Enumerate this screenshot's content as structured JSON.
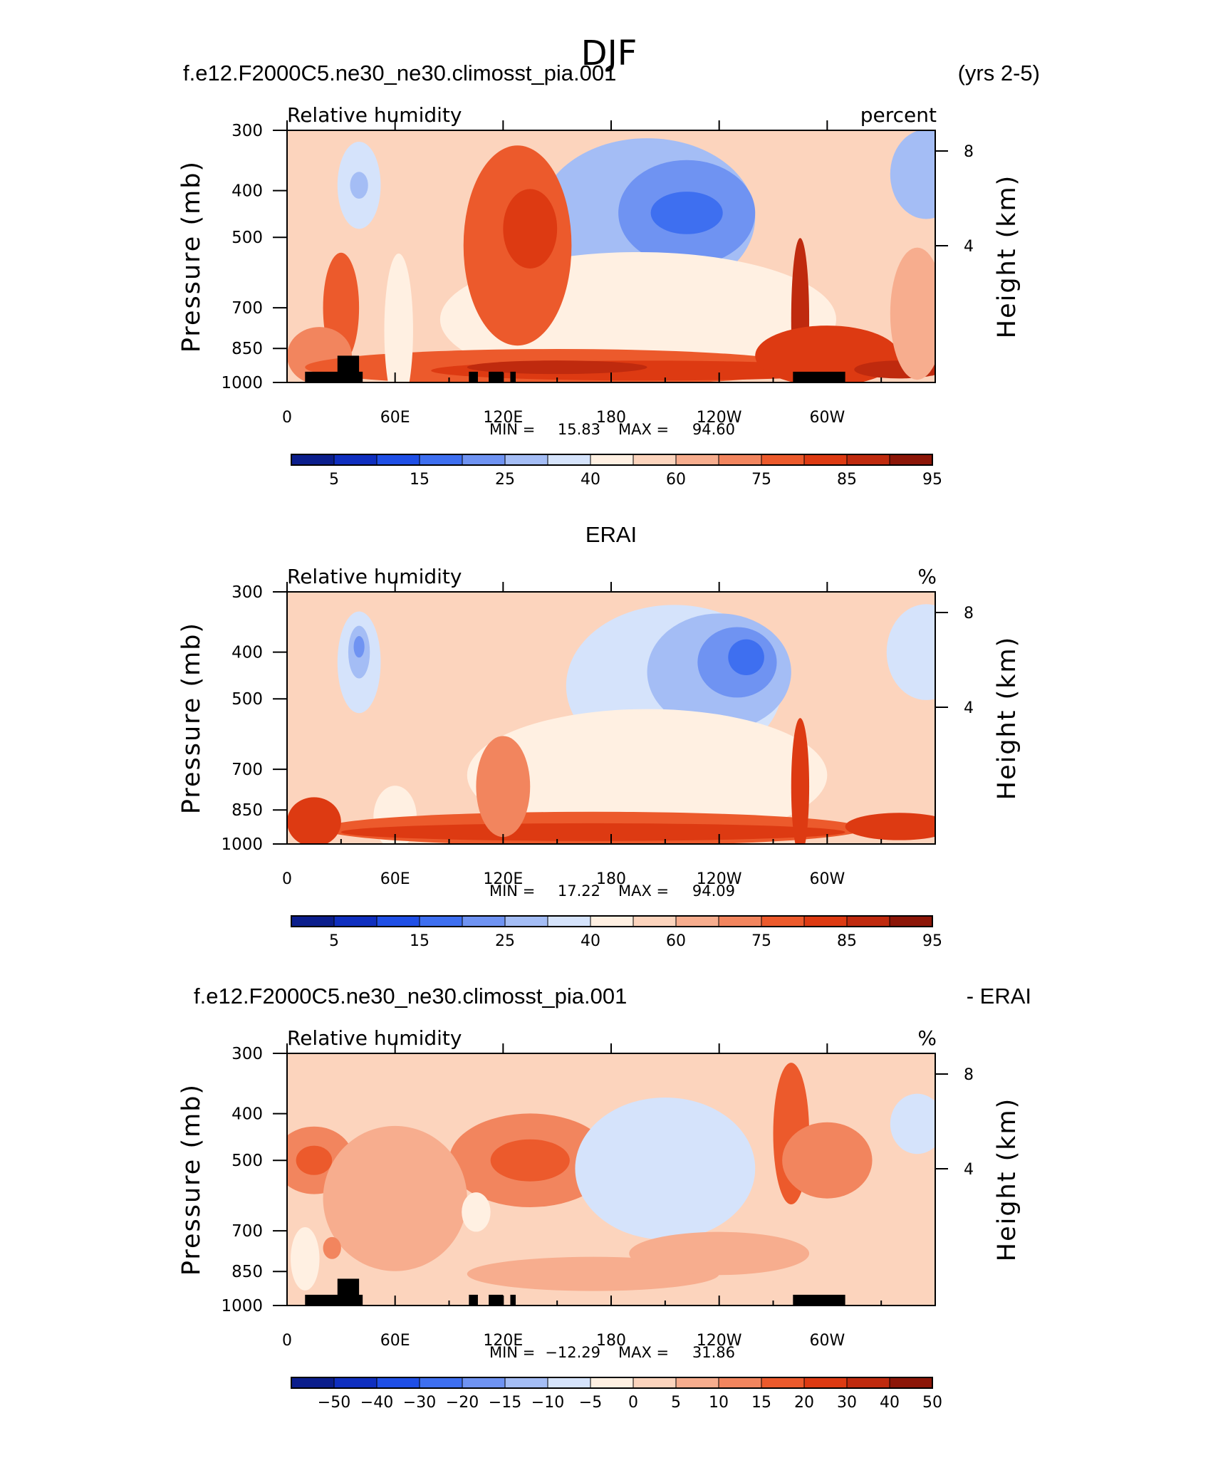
{
  "title": "DJF",
  "palette": {
    "rh": [
      "#0b1e8c",
      "#0f2fbf",
      "#1f4fe6",
      "#3e6ff0",
      "#6f93f2",
      "#a4bdf5",
      "#d5e3fb",
      "#fff0e2",
      "#fcd4bd",
      "#f7ad8e",
      "#f2855e",
      "#ec5a2c",
      "#dd3a12",
      "#bf2a0e",
      "#8c1608"
    ],
    "diff": [
      "#0b1e8c",
      "#0f2fbf",
      "#1f4fe6",
      "#3e6ff0",
      "#6f93f2",
      "#a4bdf5",
      "#d5e3fb",
      "#fff0e2",
      "#fcd4bd",
      "#f7ad8e",
      "#f2855e",
      "#ec5a2c",
      "#dd3a12",
      "#bf2a0e",
      "#8c1608"
    ],
    "land": "#000000"
  },
  "chart_data": [
    {
      "type": "heatmap",
      "case_title": "f.e12.F2000C5.ne30_ne30.climosst_pia.001",
      "years": "(yrs 2-5)",
      "variable": "Relative humidity",
      "units": "percent",
      "ylabel": "Pressure (mb)",
      "ylabel_right": "Height (km)",
      "x_ticks": [
        "0",
        "60E",
        "120E",
        "180",
        "120W",
        "60W"
      ],
      "x_tick_values": [
        0,
        60,
        120,
        180,
        240,
        300
      ],
      "xlim": [
        0,
        360
      ],
      "y_ticks": [
        "300",
        "400",
        "500",
        "700",
        "850",
        "1000"
      ],
      "y_tick_values": [
        300,
        400,
        500,
        700,
        850,
        1000
      ],
      "ylim": [
        300,
        1000
      ],
      "height_ticks": [
        "8",
        "4"
      ],
      "stats": {
        "min_label": "MIN =",
        "min": "15.83",
        "max_label": "MAX =",
        "max": "94.60"
      },
      "colorbar_labels": [
        "5",
        "15",
        "25",
        "40",
        "60",
        "75",
        "85",
        "95"
      ],
      "colorbar_label_bins": [
        0,
        2,
        4,
        6,
        8,
        10,
        12,
        14
      ],
      "background_level": 8,
      "blobs": [
        {
          "x": 200,
          "p": 455,
          "rx": 60,
          "rp": 185,
          "l": 5
        },
        {
          "x": 222,
          "p": 445,
          "rx": 38,
          "rp": 110,
          "l": 4
        },
        {
          "x": 222,
          "p": 445,
          "rx": 20,
          "rp": 45,
          "l": 3
        },
        {
          "x": 195,
          "p": 740,
          "rx": 110,
          "rp": 230,
          "l": 7
        },
        {
          "x": 40,
          "p": 390,
          "rx": 12,
          "rp": 80,
          "l": 6
        },
        {
          "x": 40,
          "p": 390,
          "rx": 5,
          "rp": 25,
          "l": 5
        },
        {
          "x": 355,
          "p": 370,
          "rx": 20,
          "rp": 90,
          "l": 5
        },
        {
          "x": 128,
          "p": 520,
          "rx": 30,
          "rp": 260,
          "l": 11
        },
        {
          "x": 135,
          "p": 480,
          "rx": 15,
          "rp": 90,
          "l": 12
        },
        {
          "x": 30,
          "p": 700,
          "rx": 10,
          "rp": 180,
          "l": 11
        },
        {
          "x": 18,
          "p": 880,
          "rx": 18,
          "rp": 120,
          "l": 10
        },
        {
          "x": 150,
          "p": 930,
          "rx": 140,
          "rp": 90,
          "l": 11
        },
        {
          "x": 200,
          "p": 945,
          "rx": 120,
          "rp": 45,
          "l": 12
        },
        {
          "x": 150,
          "p": 930,
          "rx": 50,
          "rp": 30,
          "l": 13
        },
        {
          "x": 285,
          "p": 740,
          "rx": 5,
          "rp": 280,
          "l": 13
        },
        {
          "x": 300,
          "p": 880,
          "rx": 40,
          "rp": 130,
          "l": 12
        },
        {
          "x": 340,
          "p": 940,
          "rx": 25,
          "rp": 40,
          "l": 13
        },
        {
          "x": 350,
          "p": 720,
          "rx": 15,
          "rp": 220,
          "l": 9
        },
        {
          "x": 62,
          "p": 780,
          "rx": 8,
          "rp": 300,
          "l": 7
        }
      ],
      "topography": [
        {
          "x0": 10,
          "x1": 42,
          "p0": 950
        },
        {
          "x0": 28,
          "x1": 40,
          "p0": 880
        },
        {
          "x0": 101,
          "x1": 106,
          "p0": 950
        },
        {
          "x0": 112,
          "x1": 120,
          "p0": 950
        },
        {
          "x0": 124,
          "x1": 127,
          "p0": 950
        },
        {
          "x0": 281,
          "x1": 310,
          "p0": 950
        }
      ]
    },
    {
      "type": "heatmap",
      "case_title": "ERAI",
      "years": "",
      "variable": "Relative humidity",
      "units": "%",
      "ylabel": "Pressure (mb)",
      "ylabel_right": "Height (km)",
      "x_ticks": [
        "0",
        "60E",
        "120E",
        "180",
        "120W",
        "60W"
      ],
      "x_tick_values": [
        0,
        60,
        120,
        180,
        240,
        300
      ],
      "xlim": [
        0,
        360
      ],
      "y_ticks": [
        "300",
        "400",
        "500",
        "700",
        "850",
        "1000"
      ],
      "y_tick_values": [
        300,
        400,
        500,
        700,
        850,
        1000
      ],
      "ylim": [
        300,
        1000
      ],
      "height_ticks": [
        "8",
        "4"
      ],
      "stats": {
        "min_label": "MIN =",
        "min": "17.22",
        "max_label": "MAX =",
        "max": "94.09"
      },
      "colorbar_labels": [
        "5",
        "15",
        "25",
        "40",
        "60",
        "75",
        "85",
        "95"
      ],
      "colorbar_label_bins": [
        0,
        2,
        4,
        6,
        8,
        10,
        12,
        14
      ],
      "background_level": 8,
      "blobs": [
        {
          "x": 215,
          "p": 470,
          "rx": 60,
          "rp": 180,
          "l": 6
        },
        {
          "x": 240,
          "p": 440,
          "rx": 40,
          "rp": 120,
          "l": 5
        },
        {
          "x": 250,
          "p": 420,
          "rx": 22,
          "rp": 70,
          "l": 4
        },
        {
          "x": 255,
          "p": 410,
          "rx": 10,
          "rp": 35,
          "l": 3
        },
        {
          "x": 200,
          "p": 720,
          "rx": 100,
          "rp": 220,
          "l": 7
        },
        {
          "x": 40,
          "p": 420,
          "rx": 12,
          "rp": 100,
          "l": 6
        },
        {
          "x": 40,
          "p": 400,
          "rx": 6,
          "rp": 50,
          "l": 5
        },
        {
          "x": 40,
          "p": 390,
          "rx": 3,
          "rp": 20,
          "l": 4
        },
        {
          "x": 355,
          "p": 400,
          "rx": 22,
          "rp": 90,
          "l": 6
        },
        {
          "x": 60,
          "p": 880,
          "rx": 12,
          "rp": 140,
          "l": 7
        },
        {
          "x": 170,
          "p": 930,
          "rx": 150,
          "rp": 80,
          "l": 11
        },
        {
          "x": 170,
          "p": 945,
          "rx": 140,
          "rp": 40,
          "l": 12
        },
        {
          "x": 15,
          "p": 900,
          "rx": 15,
          "rp": 110,
          "l": 12
        },
        {
          "x": 285,
          "p": 760,
          "rx": 5,
          "rp": 240,
          "l": 12
        },
        {
          "x": 340,
          "p": 920,
          "rx": 30,
          "rp": 60,
          "l": 12
        },
        {
          "x": 120,
          "p": 760,
          "rx": 15,
          "rp": 180,
          "l": 10
        }
      ],
      "topography": []
    },
    {
      "type": "heatmap",
      "case_title": "f.e12.F2000C5.ne30_ne30.climosst_pia.001",
      "years": "- ERAI",
      "variable": "Relative humidity",
      "units": "%",
      "ylabel": "Pressure (mb)",
      "ylabel_right": "Height (km)",
      "x_ticks": [
        "0",
        "60E",
        "120E",
        "180",
        "120W",
        "60W"
      ],
      "x_tick_values": [
        0,
        60,
        120,
        180,
        240,
        300
      ],
      "xlim": [
        0,
        360
      ],
      "y_ticks": [
        "300",
        "400",
        "500",
        "700",
        "850",
        "1000"
      ],
      "y_tick_values": [
        300,
        400,
        500,
        700,
        850,
        1000
      ],
      "ylim": [
        300,
        1000
      ],
      "height_ticks": [
        "8",
        "4"
      ],
      "stats": {
        "min_label": "MIN =",
        "min": "−12.29",
        "max_label": "MAX =",
        "max": "31.86"
      },
      "colorbar_labels": [
        "−50",
        "−40",
        "−30",
        "−20",
        "−15",
        "−10",
        "−5",
        "0",
        "5",
        "10",
        "15",
        "20",
        "30",
        "40",
        "50"
      ],
      "colorbar_label_bins": [
        1,
        2,
        3,
        4,
        5,
        6,
        7,
        8,
        9,
        10,
        11,
        12,
        13,
        14,
        15
      ],
      "background_level": 8,
      "blobs": [
        {
          "x": 135,
          "p": 500,
          "rx": 45,
          "rp": 110,
          "l": 10
        },
        {
          "x": 135,
          "p": 500,
          "rx": 22,
          "rp": 50,
          "l": 11
        },
        {
          "x": 15,
          "p": 500,
          "rx": 22,
          "rp": 80,
          "l": 10
        },
        {
          "x": 15,
          "p": 500,
          "rx": 10,
          "rp": 35,
          "l": 11
        },
        {
          "x": 60,
          "p": 600,
          "rx": 40,
          "rp": 200,
          "l": 9
        },
        {
          "x": 210,
          "p": 520,
          "rx": 50,
          "rp": 170,
          "l": 6
        },
        {
          "x": 280,
          "p": 440,
          "rx": 10,
          "rp": 150,
          "l": 11
        },
        {
          "x": 300,
          "p": 500,
          "rx": 25,
          "rp": 90,
          "l": 10
        },
        {
          "x": 170,
          "p": 860,
          "rx": 70,
          "rp": 70,
          "l": 9
        },
        {
          "x": 350,
          "p": 420,
          "rx": 15,
          "rp": 60,
          "l": 6
        },
        {
          "x": 240,
          "p": 780,
          "rx": 50,
          "rp": 80,
          "l": 9
        },
        {
          "x": 10,
          "p": 800,
          "rx": 8,
          "rp": 120,
          "l": 7
        },
        {
          "x": 105,
          "p": 640,
          "rx": 8,
          "rp": 60,
          "l": 7
        },
        {
          "x": 25,
          "p": 760,
          "rx": 5,
          "rp": 40,
          "l": 10
        }
      ],
      "topography": [
        {
          "x0": 10,
          "x1": 42,
          "p0": 950
        },
        {
          "x0": 28,
          "x1": 40,
          "p0": 880
        },
        {
          "x0": 101,
          "x1": 106,
          "p0": 950
        },
        {
          "x0": 112,
          "x1": 120,
          "p0": 950
        },
        {
          "x0": 124,
          "x1": 127,
          "p0": 950
        },
        {
          "x0": 281,
          "x1": 310,
          "p0": 950
        }
      ]
    }
  ]
}
